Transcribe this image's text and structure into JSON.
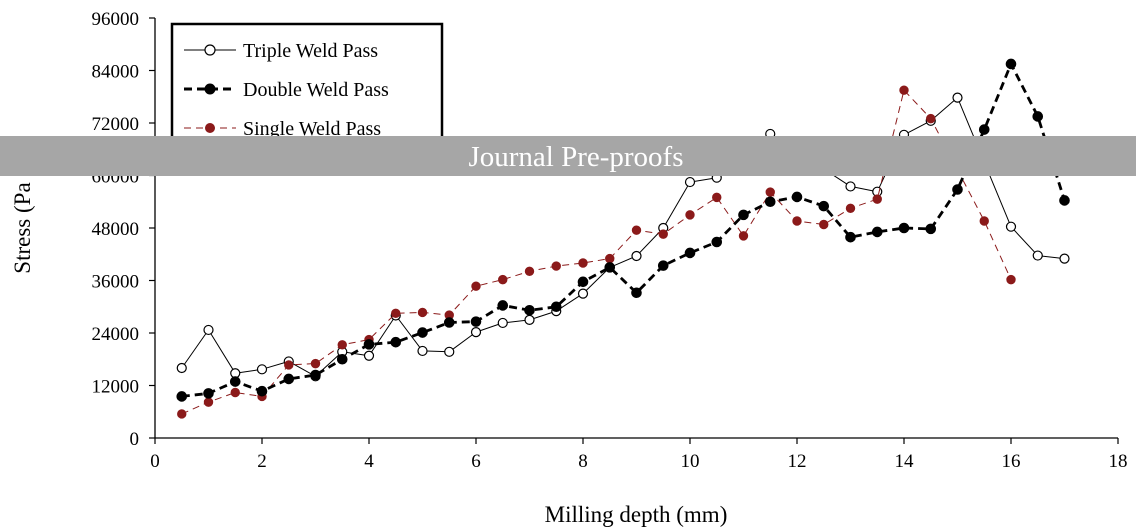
{
  "chart_data": {
    "type": "line",
    "title": "",
    "xlabel": "Milling depth (mm)",
    "ylabel": "Stress (Pa",
    "xlim": [
      0,
      18
    ],
    "ylim": [
      0,
      96000
    ],
    "xticks": [
      0,
      2,
      4,
      6,
      8,
      10,
      12,
      14,
      16,
      18
    ],
    "yticks": [
      0,
      12000,
      24000,
      36000,
      48000,
      60000,
      72000,
      84000,
      96000
    ],
    "ytick_labels": [
      "0",
      "12000",
      "24000",
      "36000",
      "48000",
      "60000",
      "72000",
      "84000",
      "96000"
    ],
    "grid": false,
    "legend_position": "top-left",
    "series": [
      {
        "name": "Triple Weld Pass",
        "style": "solid-open-circle",
        "color": "#000000",
        "x": [
          0.5,
          1,
          1.5,
          2,
          2.5,
          3,
          3.5,
          4,
          4.5,
          5,
          5.5,
          6,
          6.5,
          7,
          7.5,
          8,
          8.5,
          9,
          9.5,
          10,
          10.5,
          11.5,
          13,
          13.5,
          14,
          14.5,
          15,
          16,
          16.5,
          17
        ],
        "y": [
          16000,
          24700,
          14800,
          15700,
          17500,
          14100,
          19700,
          18800,
          28000,
          19900,
          19700,
          24200,
          26300,
          27000,
          29000,
          33000,
          39000,
          41600,
          48000,
          58500,
          59500,
          69500,
          57500,
          56300,
          69300,
          72500,
          77800,
          48300,
          41700,
          41000
        ]
      },
      {
        "name": "Double Weld Pass",
        "style": "dashed-filled-black",
        "color": "#000000",
        "x": [
          0.5,
          1,
          1.5,
          2,
          2.5,
          3,
          3.5,
          4,
          4.5,
          5,
          5.5,
          6,
          6.5,
          7,
          7.5,
          8,
          8.5,
          9,
          9.5,
          10,
          10.5,
          11,
          11.5,
          12,
          12.5,
          13,
          13.5,
          14,
          14.5,
          15,
          15.5,
          16,
          16.5,
          17
        ],
        "y": [
          9500,
          10200,
          12900,
          10700,
          13500,
          14400,
          18000,
          21400,
          21900,
          24100,
          26400,
          26600,
          30300,
          29200,
          30000,
          35700,
          39000,
          33200,
          39400,
          42300,
          44800,
          51000,
          54000,
          55100,
          53000,
          45900,
          47100,
          48000,
          47800,
          56800,
          70500,
          85500,
          73500,
          54300
        ]
      },
      {
        "name": "Single Weld Pass",
        "style": "dashed-filled-red",
        "color": "#8b1a1a",
        "x": [
          0.5,
          1,
          1.5,
          2,
          2.5,
          3,
          3.5,
          4,
          4.5,
          5,
          5.5,
          6,
          6.5,
          7,
          7.5,
          8,
          8.5,
          9,
          9.5,
          10,
          10.5,
          11,
          11.5,
          12,
          12.5,
          13,
          13.5,
          14,
          14.5,
          15.5,
          16
        ],
        "y": [
          5500,
          8200,
          10400,
          9500,
          16700,
          17000,
          21300,
          22500,
          28500,
          28700,
          28100,
          34700,
          36200,
          38100,
          39300,
          40000,
          41000,
          47500,
          46600,
          51000,
          55000,
          46200,
          56200,
          49600,
          48800,
          52500,
          54600,
          79500,
          73000,
          49600,
          36200
        ]
      }
    ]
  },
  "watermark": {
    "text": "Journal Pre-proofs",
    "band_color": "#a6a6a6",
    "text_color": "#ffffff"
  }
}
